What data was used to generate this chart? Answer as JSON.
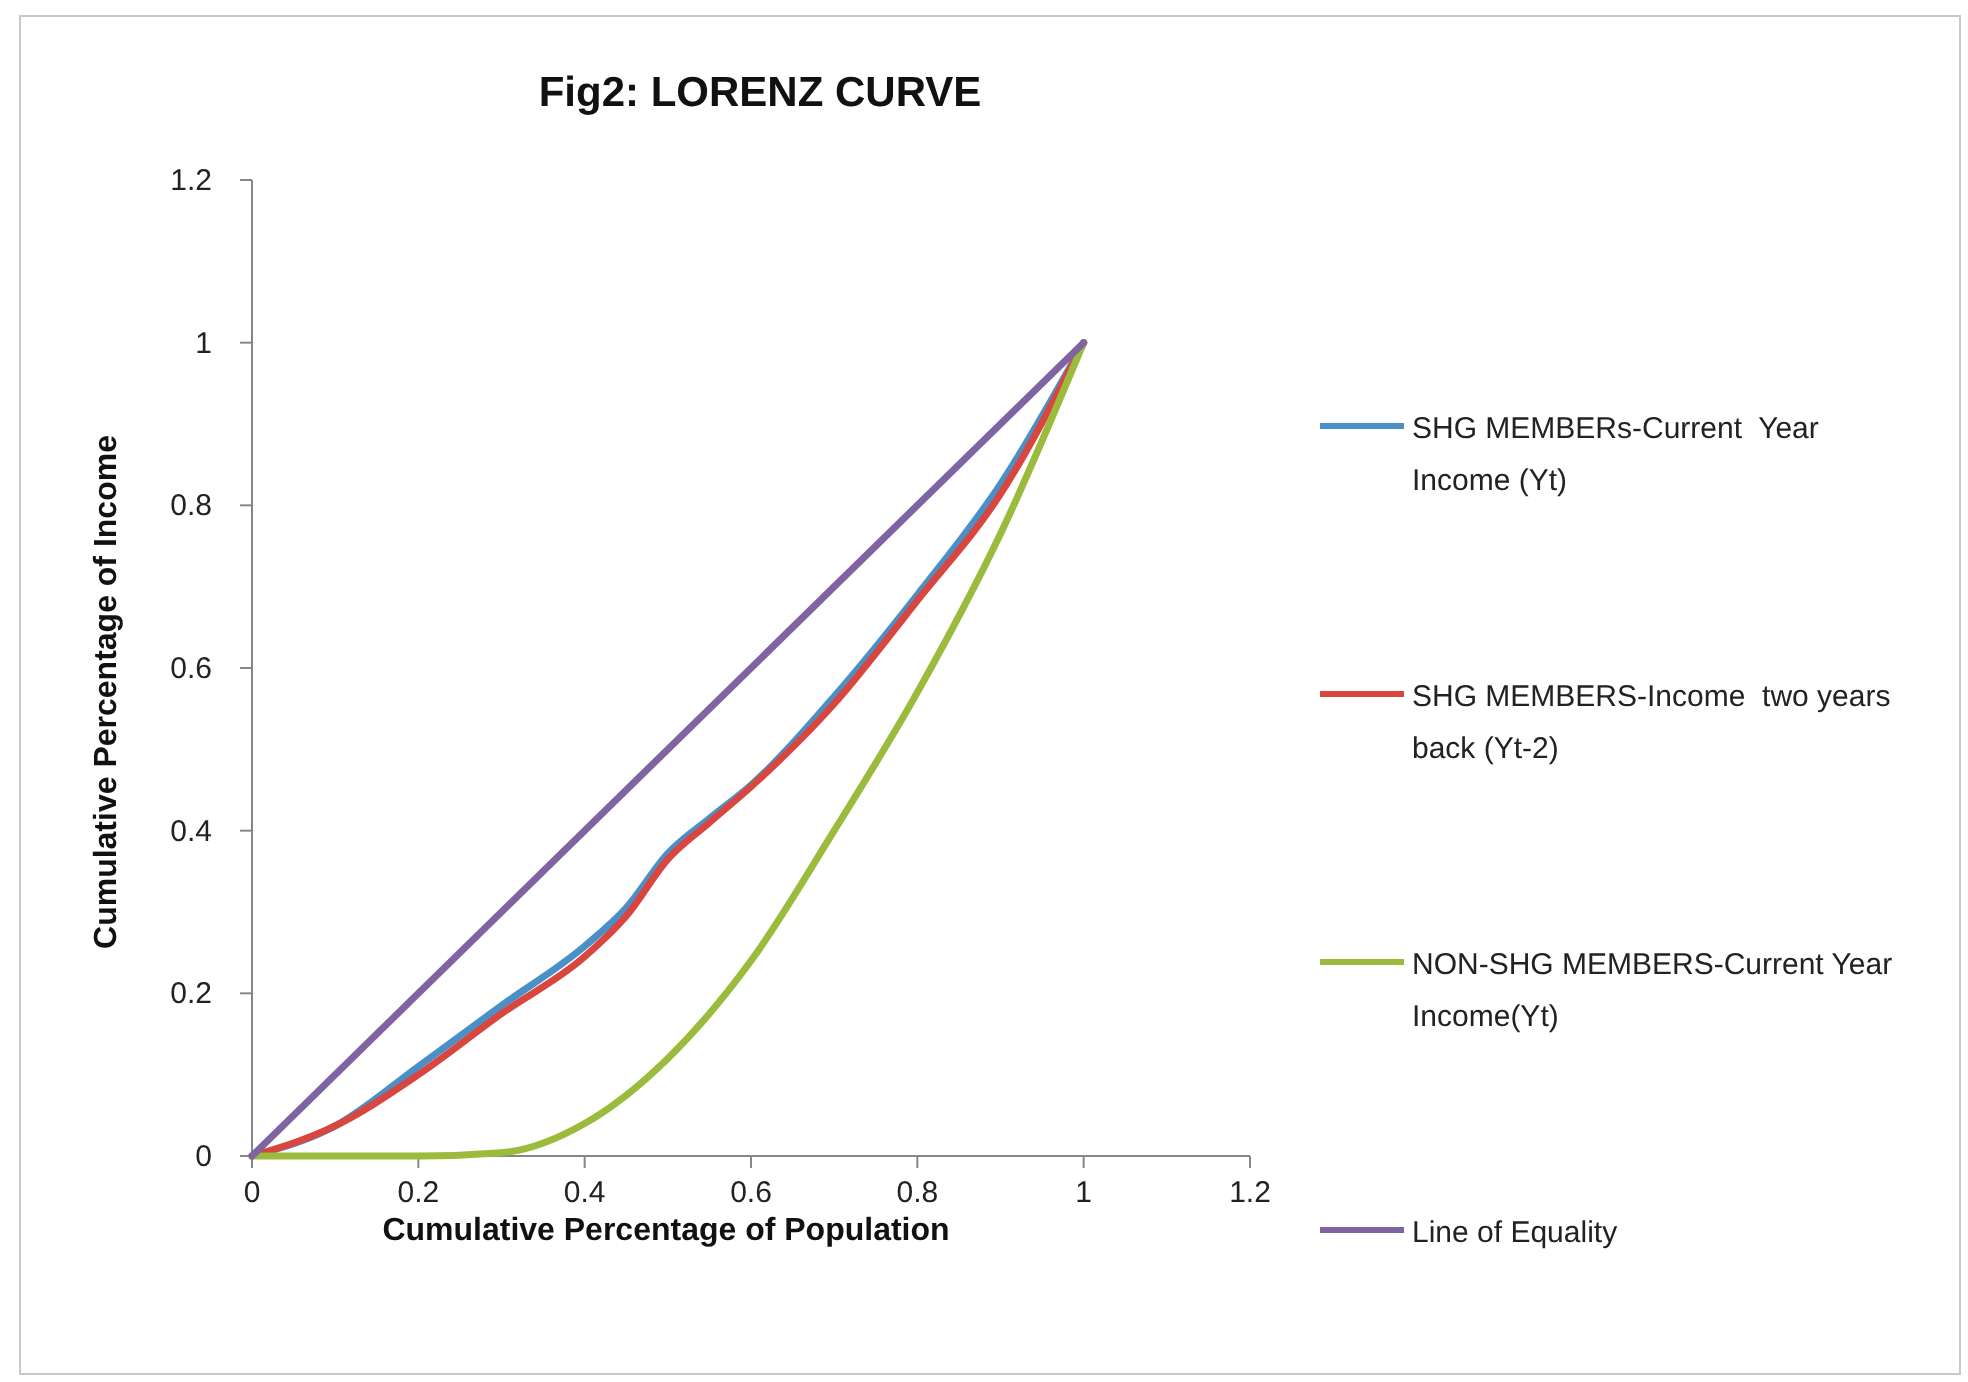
{
  "chart_data": {
    "type": "line",
    "title": "Fig2: LORENZ CURVE",
    "xlabel": "Cumulative Percentage of Population",
    "ylabel": "Cumulative Percentage of Income",
    "xlim": [
      0,
      1.2
    ],
    "ylim": [
      0,
      1.2
    ],
    "xticks": [
      0,
      0.2,
      0.4,
      0.6,
      0.8,
      1,
      1.2
    ],
    "yticks": [
      0,
      0.2,
      0.4,
      0.6,
      0.8,
      1,
      1.2
    ],
    "grid": false,
    "legend": "right",
    "marker": "none",
    "line_style": "solid",
    "series": [
      {
        "name": "SHG MEMBERs-Current  Year Income (Yt)",
        "color": "#4a90c8",
        "x": [
          0,
          0.1,
          0.2,
          0.3,
          0.4,
          0.45,
          0.5,
          0.55,
          0.6,
          0.7,
          0.8,
          0.9,
          1
        ],
        "values": [
          0,
          0.037,
          0.11,
          0.185,
          0.258,
          0.305,
          0.372,
          0.415,
          0.456,
          0.565,
          0.69,
          0.826,
          1
        ]
      },
      {
        "name": "SHG MEMBERS-Income  two years back (Yt-2)",
        "color": "#d9463f",
        "x": [
          0,
          0.1,
          0.2,
          0.3,
          0.4,
          0.45,
          0.5,
          0.55,
          0.6,
          0.7,
          0.8,
          0.9,
          1
        ],
        "values": [
          0,
          0.037,
          0.1,
          0.175,
          0.245,
          0.295,
          0.365,
          0.41,
          0.454,
          0.556,
          0.683,
          0.814,
          1
        ]
      },
      {
        "name": "NON-SHG MEMBERS-Current Year Income(Yt)",
        "color": "#9bbb3c",
        "x": [
          0,
          0.1,
          0.2,
          0.3,
          0.4,
          0.5,
          0.6,
          0.7,
          0.8,
          0.9,
          1
        ],
        "values": [
          0,
          0,
          0,
          0.004,
          0.04,
          0.12,
          0.24,
          0.4,
          0.57,
          0.765,
          1
        ]
      },
      {
        "name": "Line of Equality",
        "color": "#8064a2",
        "x": [
          0,
          1
        ],
        "values": [
          0,
          1
        ]
      }
    ]
  }
}
